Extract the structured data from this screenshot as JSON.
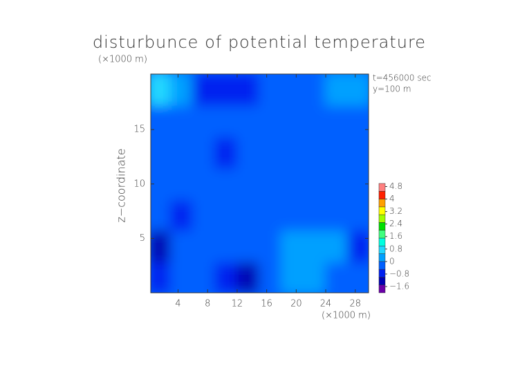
{
  "chart_data": {
    "type": "contour",
    "title": "disturbunce of potential temperature",
    "x_unit_label": "(×1000 m)",
    "y_unit_label": "(×1000 m)",
    "ylabel": "z−coordinate",
    "annotations": [
      "t=456000 sec",
      "y=100 m"
    ],
    "x": [
      1.5,
      4.5,
      7.5,
      10.5,
      13.5,
      16.5,
      19.5,
      22.5,
      25.5,
      28.5
    ],
    "z": [
      1.4,
      4.3,
      7.2,
      10,
      12.9,
      15.8,
      18.7
    ],
    "values": [
      [
        -1.0,
        -0.4,
        -0.4,
        -1.0,
        -1.1,
        -0.5,
        0.3,
        0.2,
        -0.2,
        -0.4
      ],
      [
        -1.2,
        -0.5,
        -0.3,
        -0.3,
        -0.2,
        -0.1,
        0.3,
        0.4,
        0.2,
        -0.8
      ],
      [
        -0.4,
        -0.6,
        -0.2,
        -0.3,
        -0.2,
        -0.2,
        -0.1,
        -0.2,
        -0.3,
        -0.4
      ],
      [
        -0.2,
        -0.4,
        -0.2,
        -0.2,
        -0.2,
        -0.2,
        -0.3,
        -0.2,
        -0.4,
        -0.3
      ],
      [
        -0.3,
        -0.2,
        -0.2,
        -0.6,
        -0.3,
        -0.4,
        -0.2,
        -0.5,
        -0.3,
        -0.2
      ],
      [
        -0.3,
        -0.3,
        -0.2,
        -0.3,
        -0.3,
        -0.2,
        -0.2,
        -0.5,
        -0.3,
        -0.2
      ],
      [
        0.6,
        0.1,
        -0.8,
        -1.0,
        -0.8,
        -0.5,
        -0.3,
        -0.3,
        0,
        0.4
      ]
    ],
    "xlim": [
      0.3,
      29.8
    ],
    "ylim": [
      0,
      20.1
    ],
    "xticks": [
      4,
      8,
      12,
      16,
      20,
      24,
      28
    ],
    "yticks": [
      5,
      10,
      15
    ],
    "clim": [
      -2,
      5
    ],
    "cticks": [
      4.8,
      4,
      3.2,
      2.4,
      1.6,
      0.8,
      0,
      {
        "value": -0.8,
        "label": "−0.8"
      },
      {
        "value": -1.6,
        "label": "−1.6"
      }
    ],
    "colormap": [
      "#6a00a8",
      "#0000b4",
      "#0020f0",
      "#0060ff",
      "#00a0ff",
      "#20d8ff",
      "#00ffe0",
      "#40ff80",
      "#00e000",
      "#a0ff00",
      "#ffff00",
      "#ffa000",
      "#ff2000",
      "#ff8080"
    ]
  }
}
